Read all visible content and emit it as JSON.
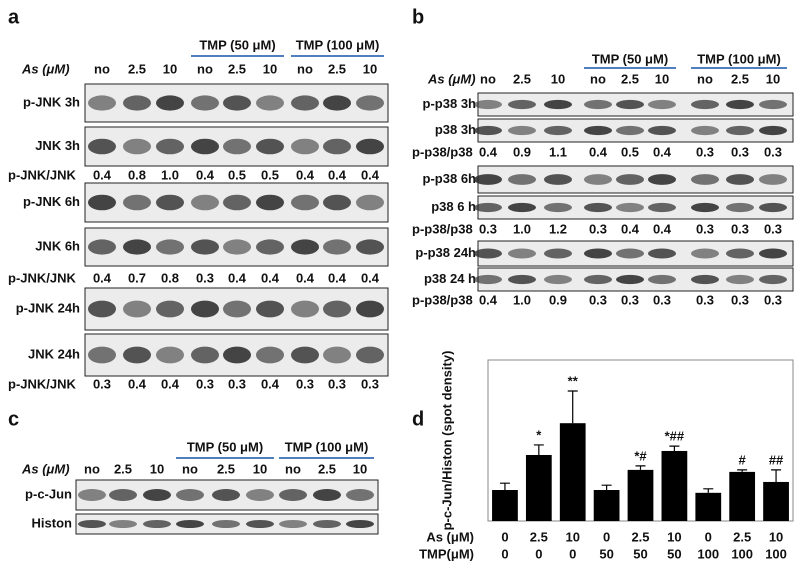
{
  "panels": [
    {
      "letter": "a",
      "as_label": "As (μM)",
      "groups": [
        "TMP  (50 μM)",
        "TMP  (100 μM)"
      ],
      "lanes": [
        "no",
        "2.5",
        "10",
        "no",
        "2.5",
        "10",
        "no",
        "2.5",
        "10"
      ],
      "rows": [
        {
          "label": "p-JNK 3h"
        },
        {
          "label": "JNK 3h"
        },
        {
          "label": "p-JNK/JNK",
          "values": [
            "0.4",
            "0.8",
            "1.0",
            "0.4",
            "0.5",
            "0.5",
            "0.4",
            "0.4",
            "0.4"
          ]
        },
        {
          "label": "p-JNK 6h"
        },
        {
          "label": "JNK 6h"
        },
        {
          "label": "p-JNK/JNK",
          "values": [
            "0.4",
            "0.7",
            "0.8",
            "0.3",
            "0.4",
            "0.4",
            "0.4",
            "0.4",
            "0.4"
          ]
        },
        {
          "label": "p-JNK 24h"
        },
        {
          "label": "JNK 24h"
        },
        {
          "label": "p-JNK/JNK",
          "values": [
            "0.3",
            "0.4",
            "0.4",
            "0.3",
            "0.3",
            "0.4",
            "0.3",
            "0.3",
            "0.3"
          ]
        }
      ]
    },
    {
      "letter": "b",
      "as_label": "As (μM)",
      "groups": [
        "TMP  (50 μM)",
        "TMP  (100 μM)"
      ],
      "lanes": [
        "no",
        "2.5",
        "10",
        "no",
        "2.5",
        "10",
        "no",
        "2.5",
        "10"
      ],
      "rows": [
        {
          "label": "p-p38 3h"
        },
        {
          "label": "p38 3h"
        },
        {
          "label": "p-p38/p38",
          "values": [
            "0.4",
            "0.9",
            "1.1",
            "0.4",
            "0.5",
            "0.4",
            "0.3",
            "0.3",
            "0.3"
          ]
        },
        {
          "label": "p-p38 6h"
        },
        {
          "label": "p38 6 h"
        },
        {
          "label": "p-p38/p38",
          "values": [
            "0.3",
            "1.0",
            "1.2",
            "0.3",
            "0.4",
            "0.4",
            "0.3",
            "0.3",
            "0.3"
          ]
        },
        {
          "label": "p-p38 24h"
        },
        {
          "label": "p38 24 h"
        },
        {
          "label": "p-p38/p38",
          "values": [
            "0.4",
            "1.0",
            "0.9",
            "0.3",
            "0.3",
            "0.3",
            "0.3",
            "0.3",
            "0.3"
          ]
        }
      ]
    },
    {
      "letter": "c",
      "as_label": "As (μM)",
      "groups": [
        "TMP  (50 μM)",
        "TMP  (100 μM)"
      ],
      "lanes": [
        "no",
        "2.5",
        "10",
        "no",
        "2.5",
        "10",
        "no",
        "2.5",
        "10"
      ],
      "rows": [
        {
          "label": "p-c-Jun"
        },
        {
          "label": "Histon"
        }
      ]
    }
  ],
  "chart_data": {
    "type": "bar",
    "letter": "d",
    "y_label": "p-c-Jun/Histon (spot density)",
    "categories": [
      "0",
      "2.5",
      "10",
      "0",
      "2.5",
      "10",
      "0",
      "2.5",
      "10"
    ],
    "categories2": [
      "0",
      "0",
      "0",
      "50",
      "50",
      "50",
      "100",
      "100",
      "100"
    ],
    "row_labels": [
      "As  (μM)",
      "TMP(μM)"
    ],
    "values": [
      0.77,
      1.64,
      2.43,
      0.77,
      1.27,
      1.74,
      0.7,
      1.22,
      0.97
    ],
    "errors": [
      0.17,
      0.25,
      0.8,
      0.12,
      0.1,
      0.12,
      0.1,
      0.05,
      0.3
    ],
    "annotations": [
      null,
      "*",
      "**",
      null,
      "*#",
      "*##",
      null,
      "#",
      "##"
    ],
    "color": "#000000",
    "ylim": [
      0,
      4
    ]
  }
}
